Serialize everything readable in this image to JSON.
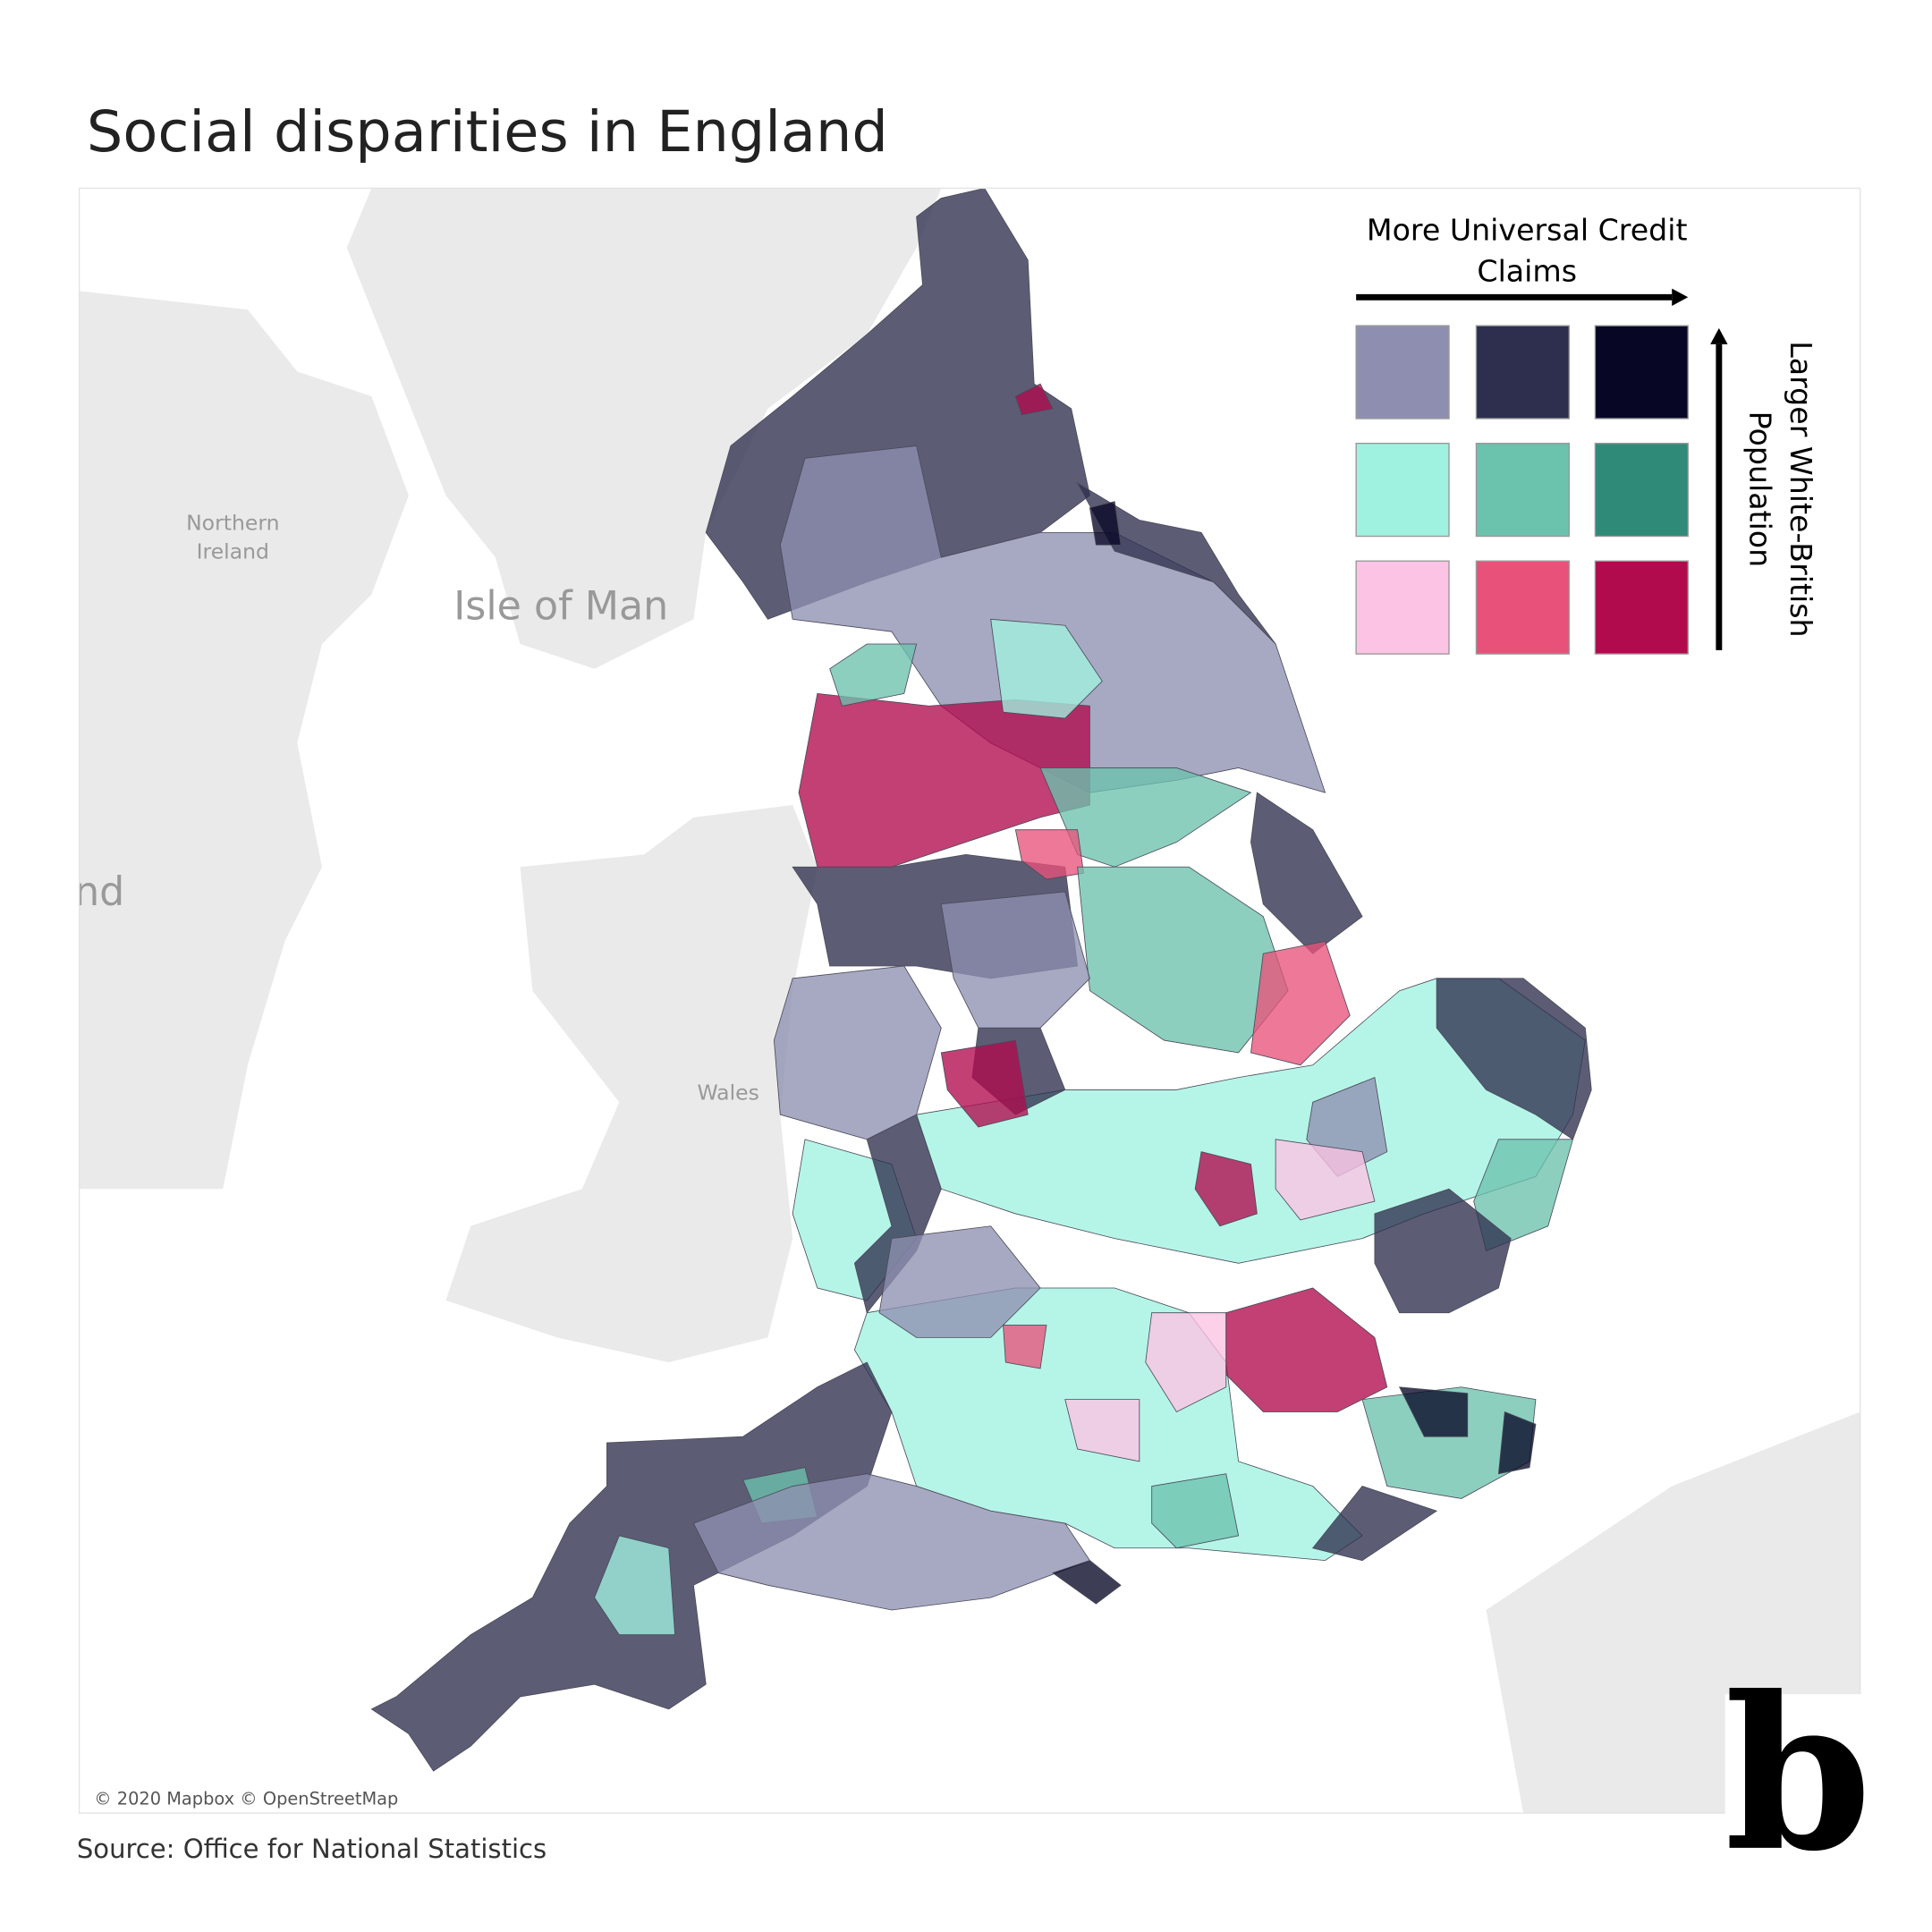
{
  "title": "Social disparities in England",
  "legend": {
    "x_label": [
      "More Universal Credit",
      "Claims"
    ],
    "y_label": [
      "Larger White-British",
      "Population"
    ],
    "colors": [
      [
        "#8e8fb0",
        "#2e2f4e",
        "#070625"
      ],
      [
        "#a0f2e0",
        "#6bc2ad",
        "#2f8a78"
      ],
      [
        "#fdc3e4",
        "#e8527a",
        "#b10a4d"
      ]
    ]
  },
  "map_labels": {
    "northern_ireland": [
      "Northern",
      "Ireland"
    ],
    "isle_of_man": "Isle of Man",
    "edge": "nd",
    "wales": "Wales"
  },
  "attribution": "© 2020 Mapbox © OpenStreetMap",
  "source": "Source: Office for National Statistics",
  "logo": "b"
}
